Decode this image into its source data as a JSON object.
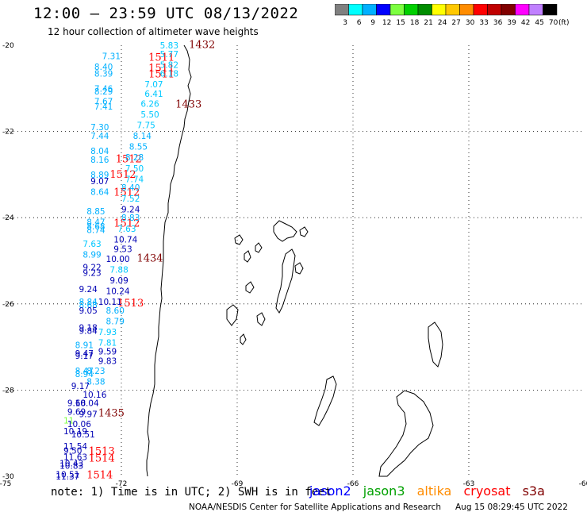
{
  "header": {
    "title": "12:00 – 23:59 UTC 08/13/2022",
    "subtitle": "12 hour collection of altimeter wave heights"
  },
  "legend": {
    "unit": "(ft)",
    "bins": [
      {
        "label": "3",
        "color": "#808080"
      },
      {
        "label": "6",
        "color": "#00ffff"
      },
      {
        "label": "9",
        "color": "#00b0ff"
      },
      {
        "label": "12",
        "color": "#0000ff"
      },
      {
        "label": "15",
        "color": "#7cff40"
      },
      {
        "label": "18",
        "color": "#00d000"
      },
      {
        "label": "21",
        "color": "#008c00"
      },
      {
        "label": "24",
        "color": "#ffff00"
      },
      {
        "label": "27",
        "color": "#ffc800"
      },
      {
        "label": "30",
        "color": "#ff8c00"
      },
      {
        "label": "33",
        "color": "#ff0000"
      },
      {
        "label": "36",
        "color": "#c00000"
      },
      {
        "label": "39",
        "color": "#800000"
      },
      {
        "label": "42",
        "color": "#ff00ff"
      },
      {
        "label": "45",
        "color": "#c080ff"
      },
      {
        "label": "70",
        "color": "#000000"
      }
    ]
  },
  "axes": {
    "lat_labels": [
      {
        "lat": -20,
        "text": "-20"
      },
      {
        "lat": -22,
        "text": "-22"
      },
      {
        "lat": -24,
        "text": "-24"
      },
      {
        "lat": -26,
        "text": "-26"
      },
      {
        "lat": -28,
        "text": "-28"
      },
      {
        "lat": -30,
        "text": "-30"
      }
    ],
    "lon_labels": [
      {
        "lon": -75,
        "text": "-75"
      },
      {
        "lon": -72,
        "text": "-72"
      },
      {
        "lon": -69,
        "text": "-69"
      },
      {
        "lon": -66,
        "text": "-66"
      },
      {
        "lon": -63,
        "text": "-63"
      },
      {
        "lon": -60,
        "text": "-60"
      }
    ]
  },
  "chart_data": {
    "type": "scatter",
    "title": "12 hour collection of altimeter wave heights",
    "xlim": [
      -75,
      -60
    ],
    "ylim": [
      -30,
      -20
    ],
    "grid": true,
    "points": [
      {
        "lon": -71.0,
        "lat": -20.0,
        "text": "5.83",
        "color": "#00c8ff"
      },
      {
        "lon": -71.0,
        "lat": -20.2,
        "text": "5.77",
        "color": "#00c8ff"
      },
      {
        "lon": -72.5,
        "lat": -20.25,
        "text": "7.31",
        "color": "#00b0ff"
      },
      {
        "lon": -71.0,
        "lat": -20.45,
        "text": "5.82",
        "color": "#00c8ff"
      },
      {
        "lon": -72.7,
        "lat": -20.5,
        "text": "8.40",
        "color": "#00b0ff"
      },
      {
        "lon": -72.7,
        "lat": -20.65,
        "text": "8.39",
        "color": "#00b0ff"
      },
      {
        "lon": -71.0,
        "lat": -20.65,
        "text": "6.18",
        "color": "#00c8ff"
      },
      {
        "lon": -71.4,
        "lat": -20.9,
        "text": "7.07",
        "color": "#00c8ff"
      },
      {
        "lon": -72.7,
        "lat": -21.0,
        "text": "7.46",
        "color": "#00b0ff"
      },
      {
        "lon": -72.7,
        "lat": -21.07,
        "text": "8.29",
        "color": "#00b0ff"
      },
      {
        "lon": -71.4,
        "lat": -21.12,
        "text": "6.41",
        "color": "#00c8ff"
      },
      {
        "lon": -72.7,
        "lat": -21.3,
        "text": "7.67",
        "color": "#00b0ff"
      },
      {
        "lon": -71.5,
        "lat": -21.35,
        "text": "6.26",
        "color": "#00c8ff"
      },
      {
        "lon": -72.7,
        "lat": -21.42,
        "text": "7.41",
        "color": "#00b0ff"
      },
      {
        "lon": -71.5,
        "lat": -21.6,
        "text": "5.50",
        "color": "#00c8ff"
      },
      {
        "lon": -71.6,
        "lat": -21.85,
        "text": "7.75",
        "color": "#00c8ff"
      },
      {
        "lon": -72.8,
        "lat": -21.9,
        "text": "7.30",
        "color": "#00b0ff"
      },
      {
        "lon": -72.8,
        "lat": -22.1,
        "text": "7.44",
        "color": "#00b0ff"
      },
      {
        "lon": -71.7,
        "lat": -22.1,
        "text": "8.14",
        "color": "#00b0ff"
      },
      {
        "lon": -71.8,
        "lat": -22.35,
        "text": "8.55",
        "color": "#00b0ff"
      },
      {
        "lon": -72.8,
        "lat": -22.45,
        "text": "8.04",
        "color": "#00b0ff"
      },
      {
        "lon": -72.8,
        "lat": -22.65,
        "text": "8.16",
        "color": "#00b0ff"
      },
      {
        "lon": -71.9,
        "lat": -22.6,
        "text": "8.28",
        "color": "#00b0ff"
      },
      {
        "lon": -71.9,
        "lat": -22.85,
        "text": "7.50",
        "color": "#00c8ff"
      },
      {
        "lon": -72.8,
        "lat": -23.0,
        "text": "8.89",
        "color": "#00b0ff"
      },
      {
        "lon": -71.9,
        "lat": -23.1,
        "text": "7.74",
        "color": "#00c8ff"
      },
      {
        "lon": -72.8,
        "lat": -23.15,
        "text": "9.07",
        "color": "#0000b4"
      },
      {
        "lon": -72.0,
        "lat": -23.3,
        "text": "8.40",
        "color": "#00b0ff"
      },
      {
        "lon": -72.8,
        "lat": -23.4,
        "text": "8.64",
        "color": "#00b0ff"
      },
      {
        "lon": -72.0,
        "lat": -23.55,
        "text": "7.52",
        "color": "#00c8ff"
      },
      {
        "lon": -72.0,
        "lat": -23.8,
        "text": "9.24",
        "color": "#0000b4"
      },
      {
        "lon": -72.9,
        "lat": -23.85,
        "text": "8.85",
        "color": "#00b0ff"
      },
      {
        "lon": -72.0,
        "lat": -24.0,
        "text": "8.83",
        "color": "#00b0ff"
      },
      {
        "lon": -72.9,
        "lat": -24.1,
        "text": "8.47",
        "color": "#00b0ff"
      },
      {
        "lon": -72.9,
        "lat": -24.2,
        "text": "8.68",
        "color": "#00b0ff"
      },
      {
        "lon": -72.9,
        "lat": -24.28,
        "text": "8.74",
        "color": "#00b0ff"
      },
      {
        "lon": -72.1,
        "lat": -24.25,
        "text": "7.63",
        "color": "#00c8ff"
      },
      {
        "lon": -72.2,
        "lat": -24.5,
        "text": "10.74",
        "color": "#0000b4"
      },
      {
        "lon": -73.0,
        "lat": -24.6,
        "text": "7.63",
        "color": "#00c8ff"
      },
      {
        "lon": -72.2,
        "lat": -24.72,
        "text": "9.53",
        "color": "#0000b4"
      },
      {
        "lon": -73.0,
        "lat": -24.85,
        "text": "8.99",
        "color": "#00b0ff"
      },
      {
        "lon": -72.4,
        "lat": -24.95,
        "text": "10.00",
        "color": "#0000b4"
      },
      {
        "lon": -73.0,
        "lat": -25.15,
        "text": "9.22",
        "color": "#0000b4"
      },
      {
        "lon": -72.3,
        "lat": -25.2,
        "text": "7.88",
        "color": "#00c8ff"
      },
      {
        "lon": -73.0,
        "lat": -25.28,
        "text": "9.23",
        "color": "#0000b4"
      },
      {
        "lon": -72.3,
        "lat": -25.45,
        "text": "9.09",
        "color": "#0000b4"
      },
      {
        "lon": -73.1,
        "lat": -25.65,
        "text": "9.24",
        "color": "#0000b4"
      },
      {
        "lon": -72.4,
        "lat": -25.7,
        "text": "10.24",
        "color": "#0000b4"
      },
      {
        "lon": -73.1,
        "lat": -25.95,
        "text": "8.84",
        "color": "#00b0ff"
      },
      {
        "lon": -72.6,
        "lat": -25.95,
        "text": "10.11",
        "color": "#0000b4"
      },
      {
        "lon": -73.1,
        "lat": -26.02,
        "text": "8.68",
        "color": "#00b0ff"
      },
      {
        "lon": -72.4,
        "lat": -26.15,
        "text": "8.60",
        "color": "#00b0ff"
      },
      {
        "lon": -73.1,
        "lat": -26.15,
        "text": "9.05",
        "color": "#0000b4"
      },
      {
        "lon": -72.4,
        "lat": -26.4,
        "text": "8.79",
        "color": "#00b0ff"
      },
      {
        "lon": -73.1,
        "lat": -26.55,
        "text": "9.18",
        "color": "#0000b4"
      },
      {
        "lon": -73.1,
        "lat": -26.62,
        "text": "9.84",
        "color": "#0000b4"
      },
      {
        "lon": -72.6,
        "lat": -26.65,
        "text": "7.93",
        "color": "#00c8ff"
      },
      {
        "lon": -72.6,
        "lat": -26.9,
        "text": "7.81",
        "color": "#00c8ff"
      },
      {
        "lon": -73.2,
        "lat": -26.95,
        "text": "8.91",
        "color": "#00b0ff"
      },
      {
        "lon": -72.6,
        "lat": -27.1,
        "text": "9.59",
        "color": "#0000b4"
      },
      {
        "lon": -73.2,
        "lat": -27.15,
        "text": "9.47",
        "color": "#0000b4"
      },
      {
        "lon": -73.2,
        "lat": -27.2,
        "text": "9.17",
        "color": "#0000b4"
      },
      {
        "lon": -72.6,
        "lat": -27.32,
        "text": "9.83",
        "color": "#0000b4"
      },
      {
        "lon": -73.2,
        "lat": -27.55,
        "text": "8.47",
        "color": "#00b0ff"
      },
      {
        "lon": -72.9,
        "lat": -27.55,
        "text": "8.23",
        "color": "#00b0ff"
      },
      {
        "lon": -73.2,
        "lat": -27.62,
        "text": "8.94",
        "color": "#00b0ff"
      },
      {
        "lon": -72.9,
        "lat": -27.8,
        "text": "8.38",
        "color": "#00b0ff"
      },
      {
        "lon": -73.3,
        "lat": -27.9,
        "text": "9.17",
        "color": "#0000b4"
      },
      {
        "lon": -73.0,
        "lat": -28.1,
        "text": "10.16",
        "color": "#0000b4"
      },
      {
        "lon": -73.4,
        "lat": -28.3,
        "text": "9.68",
        "color": "#0000b4"
      },
      {
        "lon": -73.2,
        "lat": -28.3,
        "text": "10.04",
        "color": "#0000b4"
      },
      {
        "lon": -73.4,
        "lat": -28.5,
        "text": "9.69",
        "color": "#0000b4"
      },
      {
        "lon": -73.1,
        "lat": -28.55,
        "text": "9.97",
        "color": "#0000b4"
      },
      {
        "lon": -73.5,
        "lat": -28.7,
        "text": "11",
        "color": "#7cff40"
      },
      {
        "lon": -73.4,
        "lat": -28.78,
        "text": "10.06",
        "color": "#0000b4"
      },
      {
        "lon": -73.5,
        "lat": -28.95,
        "text": "10.19",
        "color": "#0000b4"
      },
      {
        "lon": -73.3,
        "lat": -29.02,
        "text": "10.51",
        "color": "#0000b4"
      },
      {
        "lon": -73.5,
        "lat": -29.3,
        "text": "11.54",
        "color": "#0000b4"
      },
      {
        "lon": -73.5,
        "lat": -29.4,
        "text": "9.50",
        "color": "#0000b4"
      },
      {
        "lon": -73.5,
        "lat": -29.55,
        "text": "11.63",
        "color": "#0000b4"
      },
      {
        "lon": -73.6,
        "lat": -29.7,
        "text": "10.43",
        "color": "#0000b4"
      },
      {
        "lon": -73.6,
        "lat": -29.75,
        "text": "10.83",
        "color": "#0000b4"
      },
      {
        "lon": -73.7,
        "lat": -29.95,
        "text": "10.51",
        "color": "#0000b4"
      },
      {
        "lon": -73.7,
        "lat": -30.0,
        "text": "11.37",
        "color": "#0000b4"
      }
    ],
    "pass_labels": [
      {
        "lon": -70.25,
        "lat": -19.97,
        "text": "1432",
        "color": "#800000"
      },
      {
        "lon": -71.3,
        "lat": -20.27,
        "text": "1511",
        "color": "#ff0000"
      },
      {
        "lon": -71.3,
        "lat": -20.52,
        "text": "1511",
        "color": "#ff0000"
      },
      {
        "lon": -71.3,
        "lat": -20.65,
        "text": "1511",
        "color": "#ff0000"
      },
      {
        "lon": -70.6,
        "lat": -21.35,
        "text": "1433",
        "color": "#800000"
      },
      {
        "lon": -72.15,
        "lat": -22.62,
        "text": "1512",
        "color": "#ff0000"
      },
      {
        "lon": -72.3,
        "lat": -22.98,
        "text": "1512",
        "color": "#ff0000"
      },
      {
        "lon": -72.2,
        "lat": -23.4,
        "text": "1512",
        "color": "#ff0000"
      },
      {
        "lon": -72.2,
        "lat": -24.12,
        "text": "1512",
        "color": "#ff0000"
      },
      {
        "lon": -71.6,
        "lat": -24.93,
        "text": "1434",
        "color": "#800000"
      },
      {
        "lon": -72.1,
        "lat": -25.97,
        "text": "1513",
        "color": "#ff0000"
      },
      {
        "lon": -72.6,
        "lat": -28.52,
        "text": "1435",
        "color": "#800000"
      },
      {
        "lon": -72.85,
        "lat": -29.4,
        "text": "1513",
        "color": "#ff0000"
      },
      {
        "lon": -72.85,
        "lat": -29.57,
        "text": "1514",
        "color": "#ff0000"
      },
      {
        "lon": -72.9,
        "lat": -29.95,
        "text": "1514",
        "color": "#ff0000"
      }
    ]
  },
  "footer": {
    "note": "note: 1) Time is in UTC; 2) SWH is in feet",
    "satellites": [
      {
        "name": "jason2",
        "color": "#0000ff"
      },
      {
        "name": "jason3",
        "color": "#00a000"
      },
      {
        "name": "altika",
        "color": "#ff8c00"
      },
      {
        "name": "cryosat",
        "color": "#ff0000"
      },
      {
        "name": "s3a",
        "color": "#800000"
      }
    ],
    "credit": "NOAA/NESDIS Center for Satellite Applications and Research",
    "timestamp": "Aug 15 08:29:45 UTC 2022"
  }
}
